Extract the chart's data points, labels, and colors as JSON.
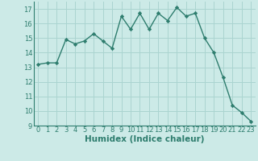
{
  "x": [
    0,
    1,
    2,
    3,
    4,
    5,
    6,
    7,
    8,
    9,
    10,
    11,
    12,
    13,
    14,
    15,
    16,
    17,
    18,
    19,
    20,
    21,
    22,
    23
  ],
  "y": [
    13.2,
    13.3,
    13.3,
    14.9,
    14.6,
    14.8,
    15.3,
    14.8,
    14.3,
    16.5,
    15.6,
    16.7,
    15.6,
    16.7,
    16.2,
    17.1,
    16.5,
    16.7,
    15.0,
    14.0,
    12.3,
    10.4,
    9.9,
    9.3
  ],
  "line_color": "#2e7d6e",
  "marker": "D",
  "marker_size": 2.2,
  "bg_color": "#cceae7",
  "grid_color": "#aad4d0",
  "xlabel": "Humidex (Indice chaleur)",
  "xlim": [
    -0.5,
    23.5
  ],
  "ylim": [
    9,
    17.5
  ],
  "yticks": [
    9,
    10,
    11,
    12,
    13,
    14,
    15,
    16,
    17
  ],
  "xticks": [
    0,
    1,
    2,
    3,
    4,
    5,
    6,
    7,
    8,
    9,
    10,
    11,
    12,
    13,
    14,
    15,
    16,
    17,
    18,
    19,
    20,
    21,
    22,
    23
  ],
  "xlabel_fontsize": 7.5,
  "tick_fontsize": 6.0,
  "line_width": 1.0
}
